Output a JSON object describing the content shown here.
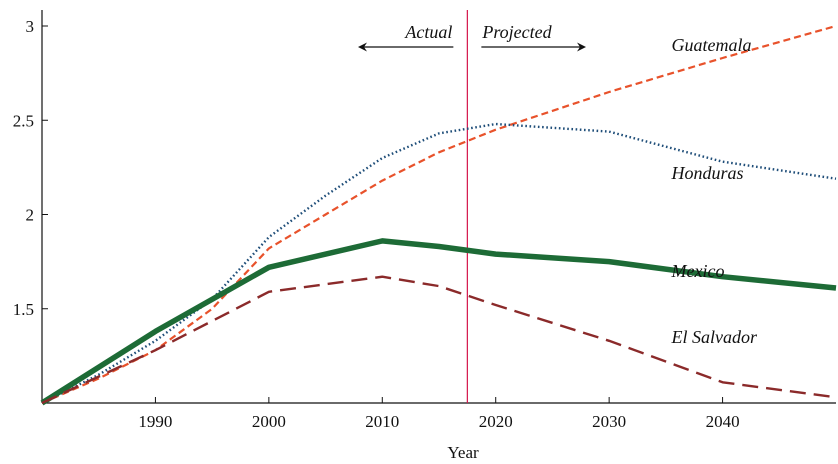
{
  "chart_data": {
    "type": "line",
    "xlabel": "Year",
    "ylabel": "",
    "xlim": [
      1980,
      2050
    ],
    "ylim": [
      1,
      3.05
    ],
    "xticks": [
      1990,
      2000,
      2010,
      2020,
      2030,
      2040
    ],
    "yticks": [
      1.5,
      2,
      2.5,
      3
    ],
    "ytick_labels": [
      "1.5",
      "2",
      "2.5",
      "3"
    ],
    "divider_year": 2017.5,
    "annotations": {
      "actual": "Actual",
      "projected": "Projected"
    },
    "series": [
      {
        "name": "Guatemala",
        "style": "dashed-short",
        "color": "#e8522b",
        "x": [
          1980,
          1985,
          1990,
          1995,
          2000,
          2005,
          2010,
          2015,
          2020,
          2030,
          2040,
          2050
        ],
        "y": [
          1.0,
          1.13,
          1.28,
          1.5,
          1.82,
          2.0,
          2.18,
          2.33,
          2.45,
          2.65,
          2.83,
          3.0
        ]
      },
      {
        "name": "Honduras",
        "style": "dotted",
        "color": "#1f4e79",
        "x": [
          1980,
          1985,
          1990,
          1995,
          2000,
          2005,
          2010,
          2015,
          2020,
          2030,
          2040,
          2050
        ],
        "y": [
          1.0,
          1.15,
          1.33,
          1.55,
          1.88,
          2.1,
          2.3,
          2.43,
          2.48,
          2.44,
          2.28,
          2.19
        ]
      },
      {
        "name": "Mexico",
        "style": "solid-thick",
        "color": "#1d6b36",
        "x": [
          1980,
          1990,
          2000,
          2010,
          2015,
          2020,
          2030,
          2040,
          2050
        ],
        "y": [
          1.0,
          1.38,
          1.72,
          1.86,
          1.83,
          1.79,
          1.75,
          1.67,
          1.61
        ]
      },
      {
        "name": "El Salvador",
        "style": "dashed-long",
        "color": "#8b2a2a",
        "x": [
          1980,
          1990,
          2000,
          2010,
          2015,
          2020,
          2030,
          2040,
          2050
        ],
        "y": [
          1.0,
          1.28,
          1.59,
          1.67,
          1.62,
          1.52,
          1.33,
          1.11,
          1.03
        ]
      }
    ],
    "series_labels": [
      {
        "text": "Guatemala",
        "x": 2035.5,
        "y": 2.9
      },
      {
        "text": "Honduras",
        "x": 2035.5,
        "y": 2.22
      },
      {
        "text": "Mexico",
        "x": 2035.5,
        "y": 1.7
      },
      {
        "text": "El Salvador",
        "x": 2035.5,
        "y": 1.35
      }
    ],
    "grid": false
  }
}
